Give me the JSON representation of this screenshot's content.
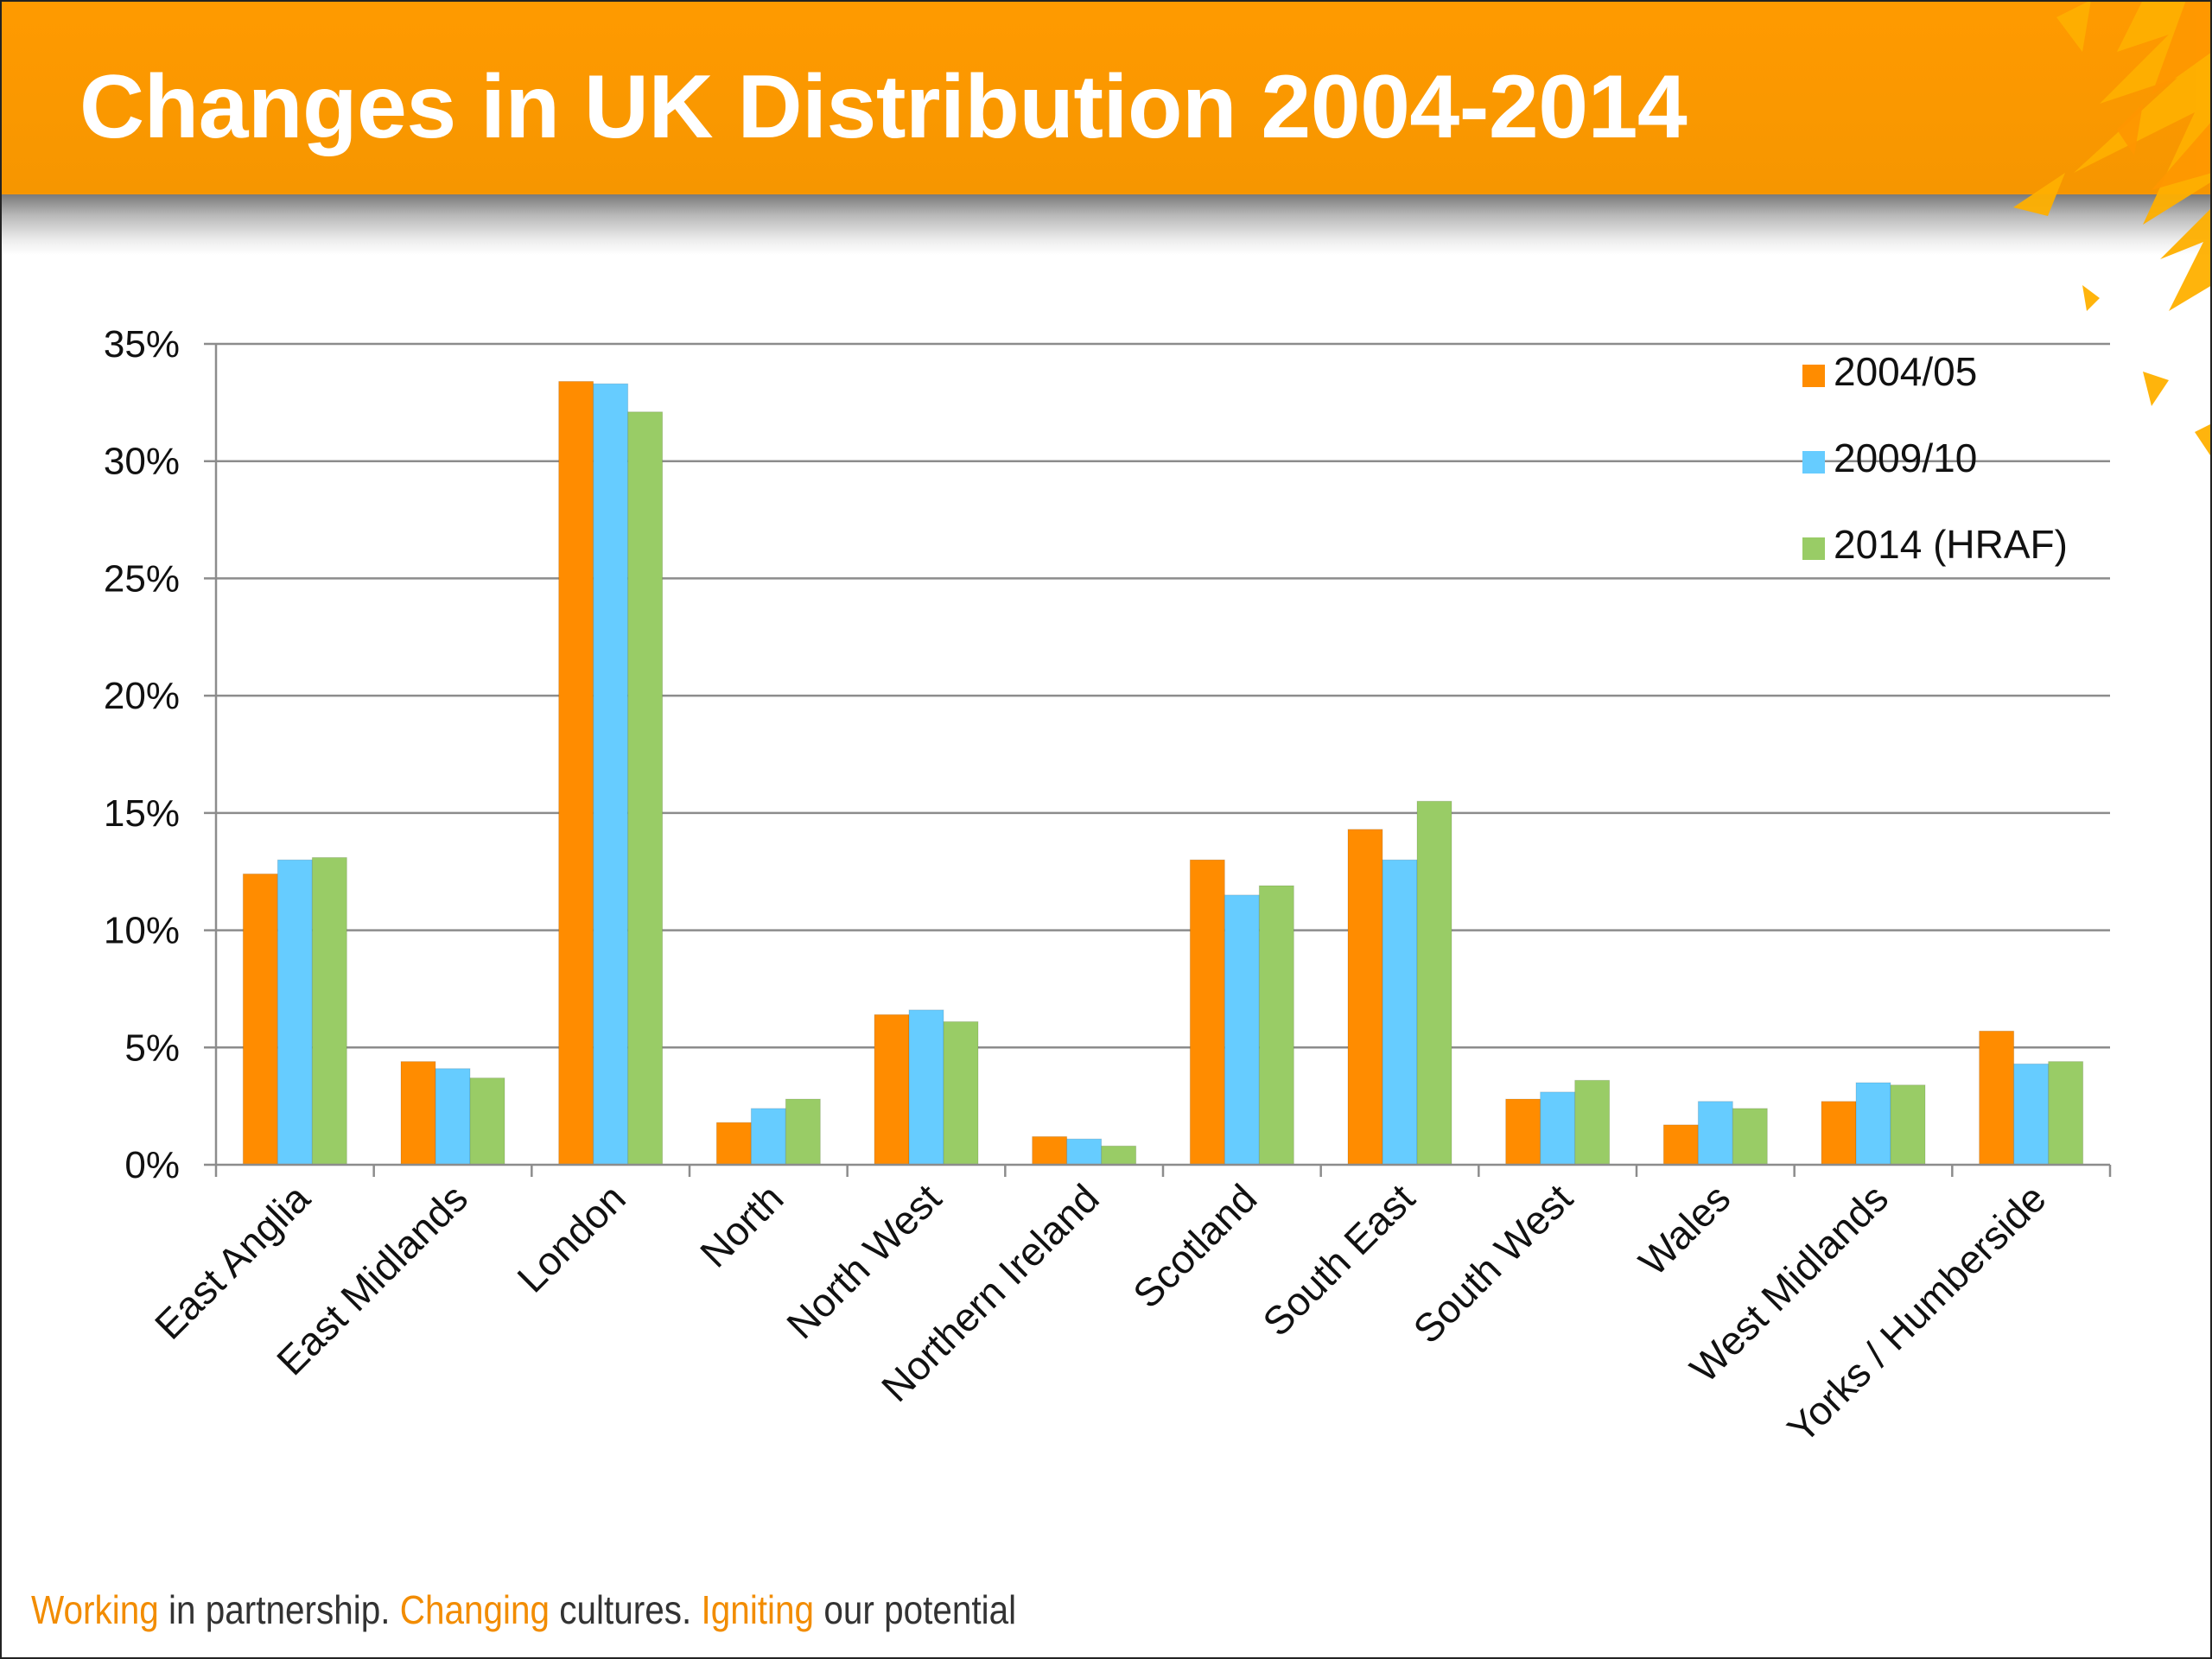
{
  "slide": {
    "title": "Changes in UK Distribution 2004-2014"
  },
  "colors": {
    "header": "#ff9a00",
    "series_2004": "#ff8c00",
    "series_2009": "#66ccff",
    "series_2014": "#99cc66",
    "footer_accent": "#f28c00"
  },
  "chart_data": {
    "type": "bar",
    "title": "",
    "xlabel": "",
    "ylabel": "",
    "ylim": [
      0,
      35
    ],
    "y_ticks": [
      "0%",
      "5%",
      "10%",
      "15%",
      "20%",
      "25%",
      "30%",
      "35%"
    ],
    "grid": true,
    "legend_position": "top-right",
    "categories": [
      "East Anglia",
      "East Midlands",
      "London",
      "North",
      "North West",
      "Northern Ireland",
      "Scotland",
      "South East",
      "South West",
      "Wales",
      "West Midlands",
      "Yorks / Humberside"
    ],
    "series": [
      {
        "name": "2004/05",
        "color": "#ff8c00",
        "values": [
          12.4,
          4.4,
          33.4,
          1.8,
          6.4,
          1.2,
          13.0,
          14.3,
          2.8,
          1.7,
          2.7,
          5.7
        ]
      },
      {
        "name": "2009/10",
        "color": "#66ccff",
        "values": [
          13.0,
          4.1,
          33.3,
          2.4,
          6.6,
          1.1,
          11.5,
          13.0,
          3.1,
          2.7,
          3.5,
          4.3
        ]
      },
      {
        "name": "2014 (HRAF)",
        "color": "#99cc66",
        "values": [
          13.1,
          3.7,
          32.1,
          2.8,
          6.1,
          0.8,
          11.9,
          15.5,
          3.6,
          2.4,
          3.4,
          4.4
        ]
      }
    ]
  },
  "footer": {
    "part1": "Working",
    "part2": " in partnership. ",
    "part3": "Changing",
    "part4": " cultures. ",
    "part5": "Igniting",
    "part6": " our potential"
  }
}
